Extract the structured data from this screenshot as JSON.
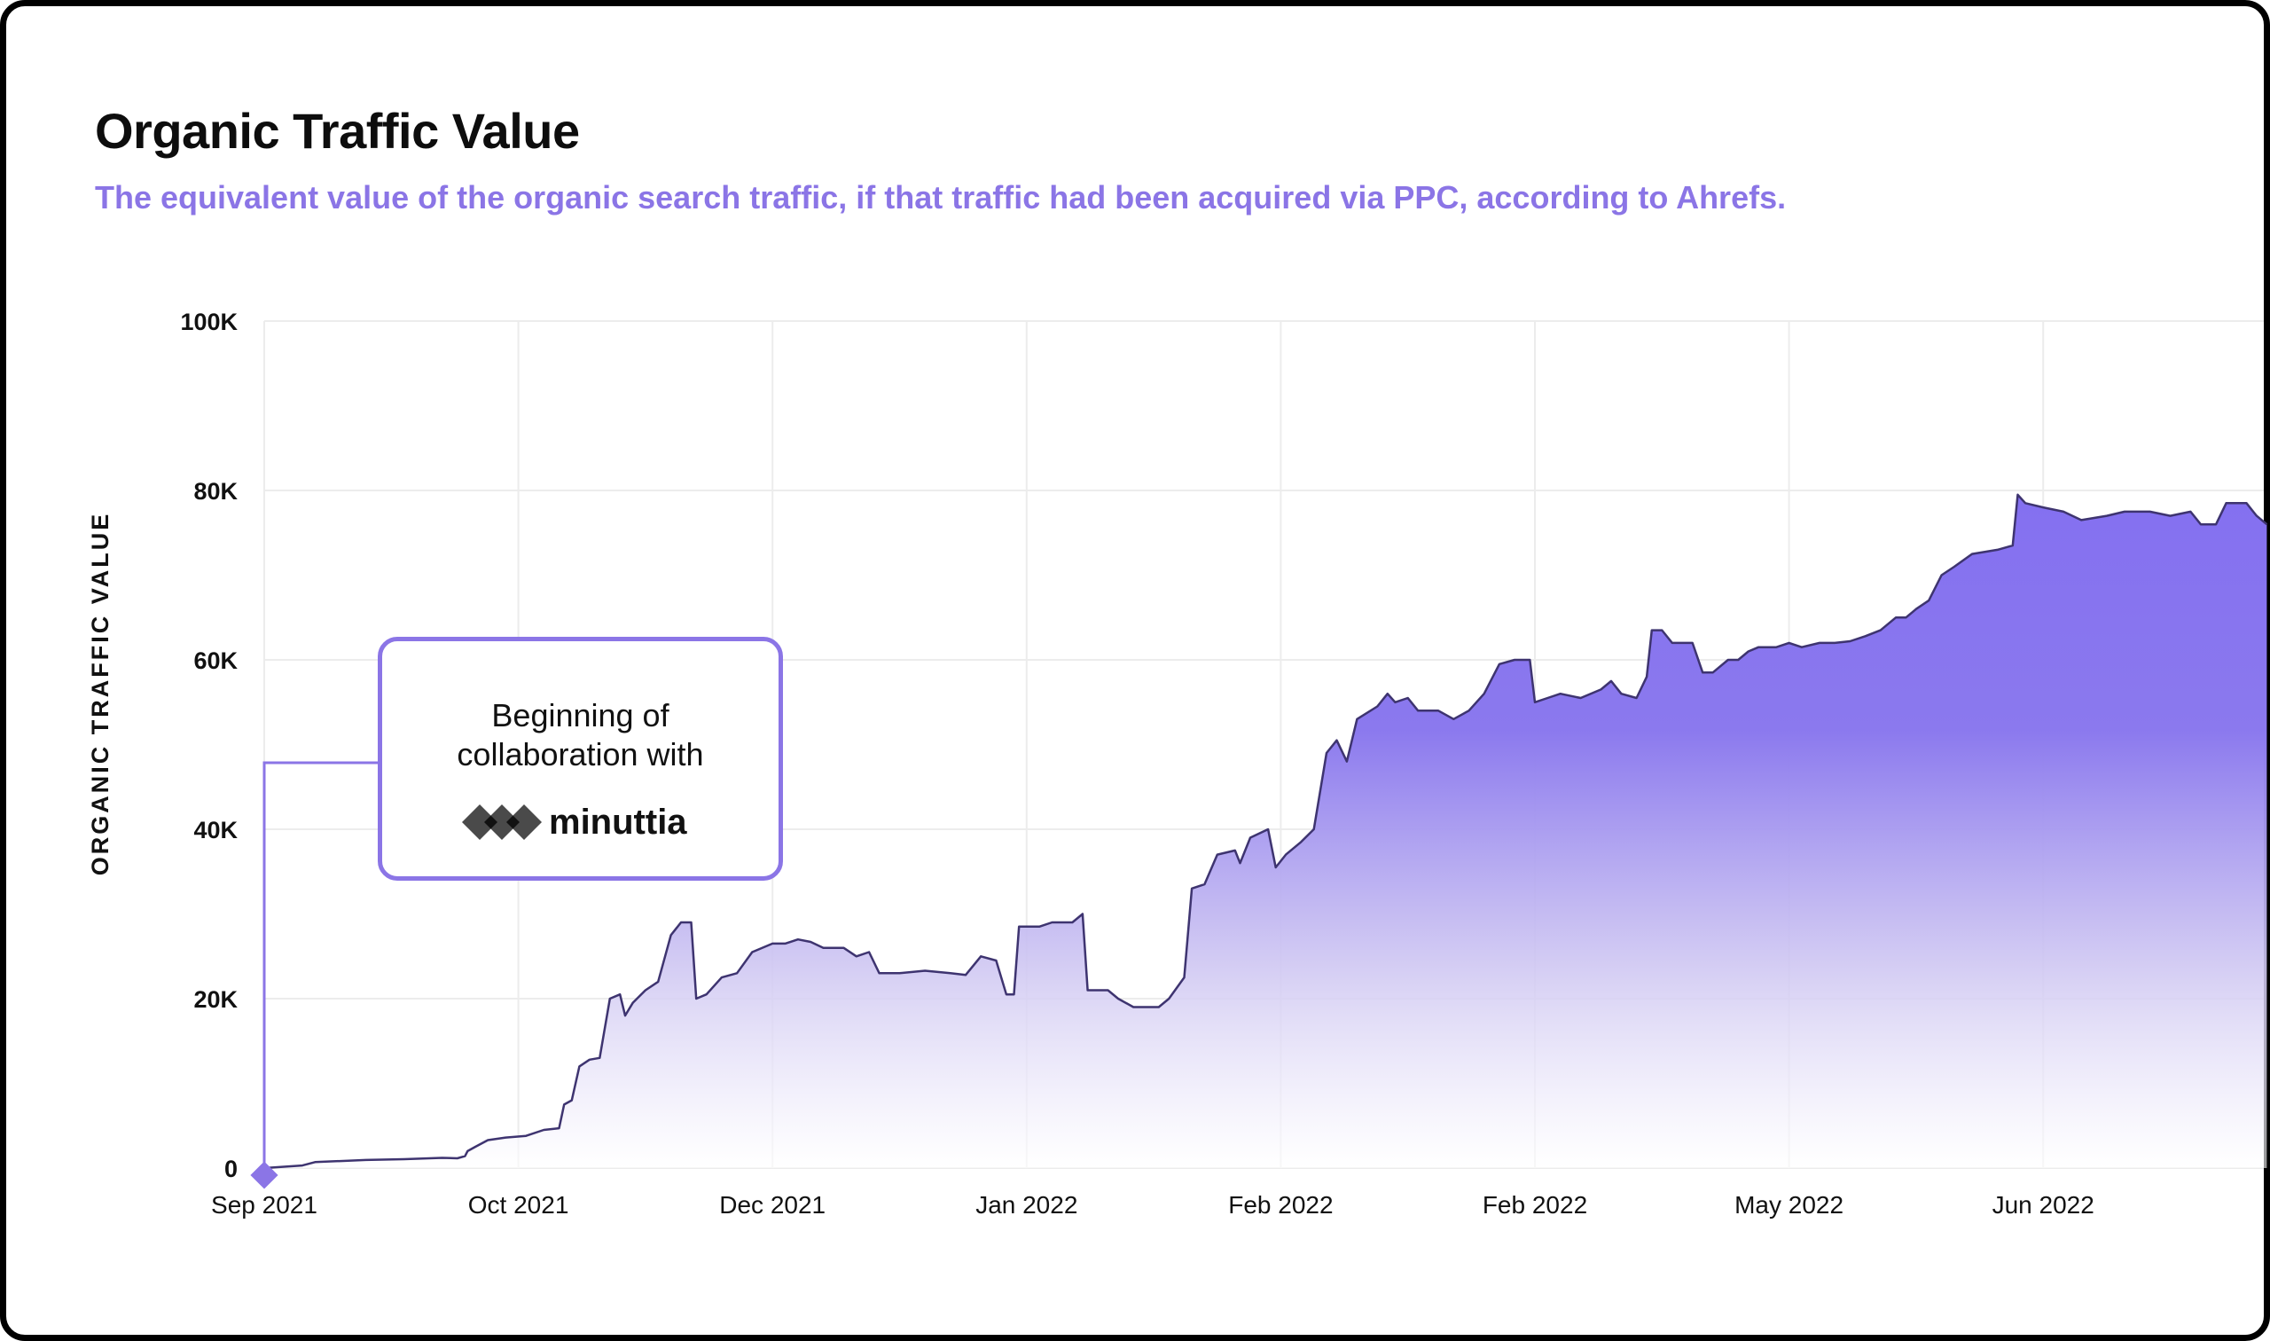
{
  "header": {
    "title": "Organic Traffic Value",
    "subtitle": "The equivalent value of the organic search traffic, if that traffic had been acquired via PPC, according to Ahrefs."
  },
  "callout": {
    "line1": "Beginning of",
    "line2": "collaboration with",
    "brand": "minuttia"
  },
  "colors": {
    "accent": "#8b75e6",
    "area_top": "#8470f0",
    "line": "#3e3470",
    "grid": "#ececec",
    "logo": "#4a4a4a"
  },
  "chart_data": {
    "type": "area",
    "title": "Organic Traffic Value",
    "ylabel": "ORGANIC TRAFFIC VALUE",
    "ylim": [
      0,
      100000
    ],
    "yticks": [
      {
        "value": 0,
        "label": "0"
      },
      {
        "value": 20000,
        "label": "20K"
      },
      {
        "value": 40000,
        "label": "40K"
      },
      {
        "value": 60000,
        "label": "60K"
      },
      {
        "value": 80000,
        "label": "80K"
      },
      {
        "value": 100000,
        "label": "100K"
      }
    ],
    "xticks": [
      "Sep 2021",
      "Oct 2021",
      "Dec 2021",
      "Jan 2022",
      "Feb 2022",
      "Feb 2022",
      "May 2022",
      "Jun 2022"
    ],
    "xlim": [
      0,
      7.9
    ],
    "grid": true,
    "annotation": {
      "x": 0,
      "y": 0,
      "text": "Beginning of collaboration with minuttia"
    },
    "series": [
      {
        "values": [
          [
            0,
            0
          ],
          [
            0.05,
            0
          ],
          [
            0.15,
            200
          ],
          [
            0.2,
            600
          ],
          [
            0.3,
            800
          ],
          [
            0.4,
            900
          ],
          [
            0.5,
            1000
          ],
          [
            0.7,
            1200
          ],
          [
            0.85,
            1200
          ],
          [
            0.9,
            1000
          ],
          [
            0.8,
            1200
          ],
          [
            0.8,
            1200
          ],
          [
            0.8,
            1200
          ],
          [
            0.8,
            1200
          ],
          [
            0.75,
            1200
          ],
          [
            0.78,
            1200
          ],
          [
            0.8,
            1200
          ],
          [
            0.8,
            1200
          ],
          [
            0.8,
            1200
          ],
          [
            0.8,
            1200
          ]
        ]
      }
    ]
  }
}
